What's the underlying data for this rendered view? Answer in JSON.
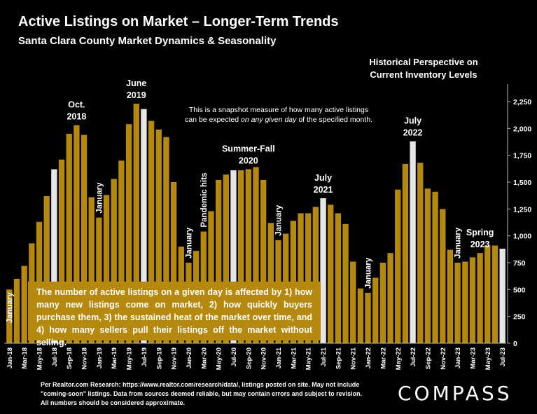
{
  "title": "Active Listings on Market – Longer-Term Trends",
  "subtitle": "Santa Clara County Market Dynamics & Seasonality",
  "historical_note": [
    "Historical Perspective on",
    "Current Inventory Levels"
  ],
  "snapshot_note": {
    "line1": "This is a snapshot measure of how many active listings",
    "line2_pre": "can be expected ",
    "line2_em": "on any given day",
    "line2_post": " of the specified month."
  },
  "callout_text": "The number of active listings on a given day is affected by 1) how many new listings come on market, 2) how quickly buyers purchase them, 3) the sustained heat of the market over time, and 4) how many sellers pull their listings off the market without selling.",
  "footer_text": "Per Realtor.com Research: https://www.realtor.com/research/data/, listings posted on site. May not include \"coming-soon\" listings. Data from sources deemed reliable, but may contain errors and subject to revision. All numbers should be considered approximate.",
  "logo": "COMPASS",
  "colors": {
    "bar": "#b5890e",
    "highlight": "#e6e6e6",
    "background": "#000000",
    "text": "#ffffff"
  },
  "chart_data": {
    "type": "bar",
    "ylim": [
      0,
      2250
    ],
    "yticks": [
      0,
      250,
      500,
      750,
      1000,
      1250,
      1500,
      1750,
      2000,
      2250
    ],
    "ytick_labels": [
      "0",
      "250",
      "500",
      "750",
      "1,000",
      "1,250",
      "1,500",
      "1,750",
      "2,000",
      "2,250"
    ],
    "grid": false,
    "y_axis_side": "right",
    "months": [
      "Jan-18",
      "Feb-18",
      "Mar-18",
      "Apr-18",
      "May-18",
      "Jun-18",
      "Jul-18",
      "Aug-18",
      "Sep-18",
      "Oct-18",
      "Nov-18",
      "Dec-18",
      "Jan-19",
      "Feb-19",
      "Mar-19",
      "Apr-19",
      "May-19",
      "Jun-19",
      "Jul-19",
      "Aug-19",
      "Sep-19",
      "Oct-19",
      "Nov-19",
      "Dec-19",
      "Jan-20",
      "Feb-20",
      "Mar-20",
      "Apr-20",
      "May-20",
      "Jun-20",
      "Jul-20",
      "Aug-20",
      "Sep-20",
      "Oct-20",
      "Nov-20",
      "Dec-20",
      "Jan-21",
      "Feb-21",
      "Mar-21",
      "Apr-21",
      "May-21",
      "Jun-21",
      "Jul-21",
      "Aug-21",
      "Sep-21",
      "Oct-21",
      "Nov-21",
      "Dec-21",
      "Jan-22",
      "Feb-22",
      "Mar-22",
      "Apr-22",
      "May-22",
      "Jun-22",
      "Jul-22",
      "Aug-22",
      "Sep-22",
      "Oct-22",
      "Nov-22",
      "Dec-22",
      "Jan-23",
      "Feb-23",
      "Mar-23",
      "Apr-23",
      "May-23",
      "Jun-23",
      "Jul-23"
    ],
    "values": [
      500,
      600,
      720,
      930,
      1130,
      1370,
      1620,
      1710,
      1950,
      2030,
      1940,
      1360,
      1170,
      1380,
      1530,
      1700,
      2040,
      2230,
      2180,
      2070,
      1990,
      1920,
      1500,
      900,
      750,
      860,
      1040,
      1230,
      1520,
      1570,
      1610,
      1610,
      1620,
      1640,
      1520,
      1120,
      960,
      1020,
      1140,
      1210,
      1210,
      1270,
      1350,
      1290,
      1210,
      1110,
      760,
      510,
      470,
      610,
      750,
      840,
      1430,
      1670,
      1880,
      1680,
      1440,
      1410,
      1250,
      870,
      750,
      760,
      800,
      840,
      910,
      910,
      880
    ],
    "highlighted": [
      "Jul-18",
      "Jul-19",
      "Jul-20",
      "Jul-21",
      "Jul-22",
      "Jul-23"
    ],
    "xtick_labels": [
      "Jan-18",
      "Mar-18",
      "May-18",
      "Jul-18",
      "Sep-18",
      "Nov-18",
      "Jan-19",
      "Mar-19",
      "May-19",
      "Jul-19",
      "Sep-19",
      "Nov-19",
      "Jan-20",
      "Mar-20",
      "May-20",
      "Jul-20",
      "Sep-20",
      "Nov-20",
      "Jan-21",
      "Mar-21",
      "May-21",
      "Jul-21",
      "Sep-21",
      "Nov-21",
      "Jan-22",
      "Mar-22",
      "May-22",
      "Jul-22",
      "Sep-22",
      "Nov-22",
      "Jan-23",
      "Mar-23",
      "May-23",
      "Jul-23"
    ],
    "annotations": [
      {
        "month": "Jan-18",
        "text": [
          "January"
        ],
        "vertical": true,
        "inside": true
      },
      {
        "month": "Oct-18",
        "text": [
          "Oct.",
          "2018"
        ]
      },
      {
        "month": "Jan-19",
        "text": [
          "January"
        ],
        "vertical": true
      },
      {
        "month": "Jun-19",
        "text": [
          "June",
          "2019"
        ]
      },
      {
        "month": "Jan-20",
        "text": [
          "January"
        ],
        "vertical": true
      },
      {
        "month": "Mar-20",
        "text": [
          "Pandemic hits"
        ],
        "vertical": true
      },
      {
        "month": "Sep-20",
        "text": [
          "Summer-Fall",
          "2020"
        ]
      },
      {
        "month": "Jan-21",
        "text": [
          "January"
        ],
        "vertical": true
      },
      {
        "month": "Jul-21",
        "text": [
          "July",
          "2021"
        ]
      },
      {
        "month": "Jan-22",
        "text": [
          "January"
        ],
        "vertical": true
      },
      {
        "month": "Jul-22",
        "text": [
          "July",
          "2022"
        ]
      },
      {
        "month": "Jan-23",
        "text": [
          "January"
        ],
        "vertical": true
      },
      {
        "month": "Apr-23",
        "text": [
          "Spring",
          "2023"
        ]
      }
    ]
  }
}
